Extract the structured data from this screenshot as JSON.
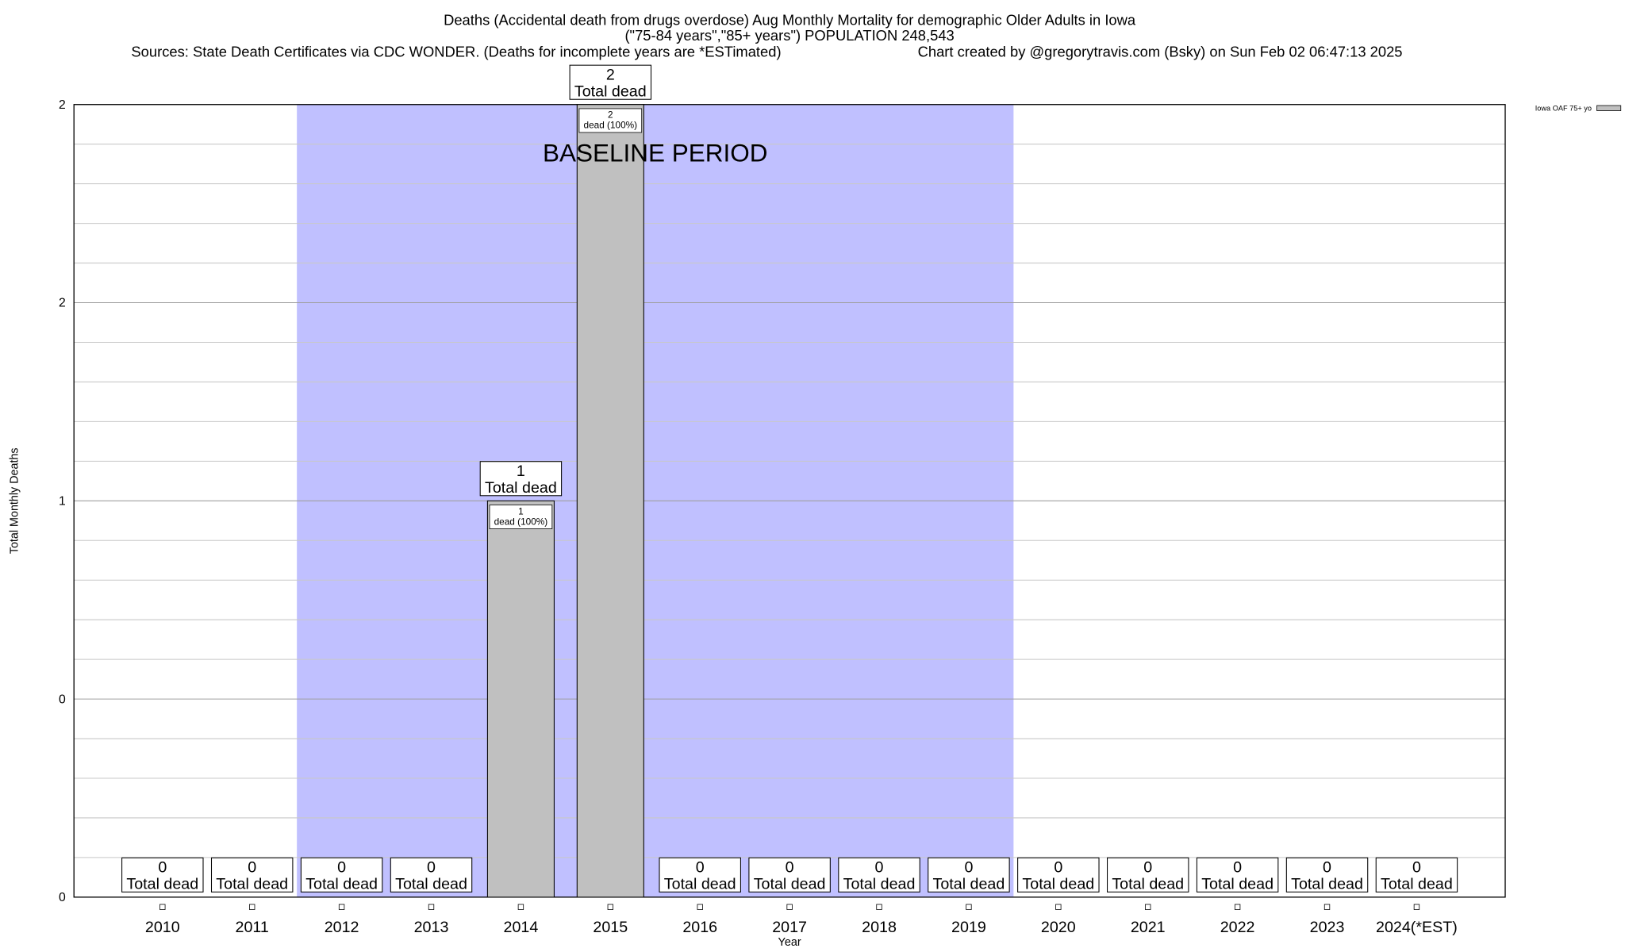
{
  "chart_data": {
    "type": "bar",
    "title": "Deaths (Accidental death from drugs overdose) Aug Monthly Mortality for demographic Older Adults in Iowa",
    "subtitle": "(\"75-84 years\",\"85+ years\") POPULATION 248,543",
    "source": "Sources: State Death Certificates via CDC WONDER. (Deaths for incomplete years are *ESTimated)",
    "credit": "Chart created by @gregorytravis.com (Bsky) on Sun Feb 02 06:47:13 2025",
    "x_label": "Year",
    "y_label": "Total Monthly Deaths",
    "categories": [
      "2010",
      "2011",
      "2012",
      "2013",
      "2014",
      "2015",
      "2016",
      "2017",
      "2018",
      "2019",
      "2020",
      "2021",
      "2022",
      "2023",
      "2024(*EST)"
    ],
    "series": [
      {
        "name": "Iowa OAF 75+ yo",
        "color": "#c0c0c0",
        "values": [
          0,
          0,
          0,
          0,
          1,
          2,
          0,
          0,
          0,
          0,
          0,
          0,
          0,
          0,
          0
        ],
        "total_label": "Total dead",
        "inner_labels": [
          null,
          null,
          null,
          null,
          "dead (100%)",
          "dead (100%)",
          null,
          null,
          null,
          null,
          null,
          null,
          null,
          null,
          null
        ]
      }
    ],
    "ylim": [
      0,
      2
    ],
    "yticks": [
      0,
      {
        "value": 0.5,
        "label": "0"
      },
      1,
      {
        "value": 1.5,
        "label": "2"
      },
      2
    ],
    "minor_yticks": [
      0.1,
      0.2,
      0.3,
      0.4,
      0.6,
      0.7,
      0.8,
      0.9,
      1.1,
      1.2,
      1.3,
      1.4,
      1.6,
      1.7,
      1.8,
      1.9
    ],
    "grid": true,
    "legend": "top-right",
    "shaded_region": {
      "label": "BASELINE PERIOD",
      "from": "2012",
      "to": "2019",
      "color": "#c0c0ff"
    }
  }
}
